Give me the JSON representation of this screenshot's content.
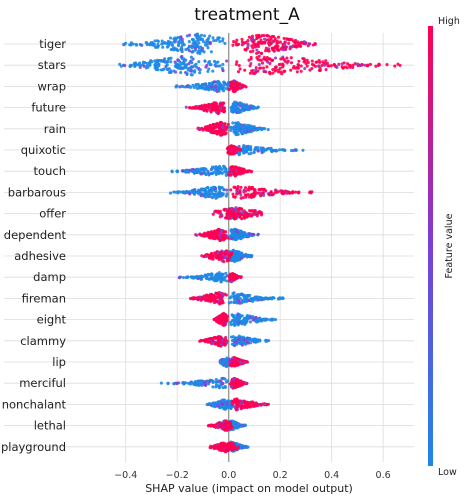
{
  "chart_data": {
    "type": "scatter",
    "subtype": "shap-beeswarm",
    "title": "treatment_A",
    "xlabel": "SHAP value (impact on model output)",
    "xlim": [
      -0.5,
      0.72
    ],
    "xticks": [
      -0.4,
      -0.2,
      0.0,
      0.2,
      0.4,
      0.6
    ],
    "xtick_labels": [
      "−0.4",
      "−0.2",
      "0.0",
      "0.2",
      "0.4",
      "0.6"
    ],
    "grid": true,
    "colorbar": {
      "label": "Feature value",
      "high": "High",
      "low": "Low"
    },
    "colors": {
      "low": "#1e88e5",
      "high": "#ff0052"
    },
    "features": [
      {
        "name": "tiger",
        "lowRange": [
          -0.43,
          0.0
        ],
        "highRange": [
          0.0,
          0.37
        ],
        "lowPeak": -0.12,
        "highPeak": 0.12,
        "width": 1.0
      },
      {
        "name": "stars",
        "lowRange": [
          -0.46,
          0.0
        ],
        "highRange": [
          0.0,
          0.69
        ],
        "lowPeak": -0.15,
        "highPeak": 0.15,
        "width": 1.0
      },
      {
        "name": "wrap",
        "lowRange": [
          -0.22,
          0.02
        ],
        "highRange": [
          0.0,
          0.07
        ],
        "lowPeak": -0.03,
        "highPeak": 0.02,
        "width": 0.45
      },
      {
        "name": "future",
        "lowRange": [
          0.0,
          0.13
        ],
        "highRange": [
          -0.17,
          0.0
        ],
        "lowPeak": 0.03,
        "highPeak": -0.04,
        "width": 0.5
      },
      {
        "name": "rain",
        "lowRange": [
          0.0,
          0.17
        ],
        "highRange": [
          -0.14,
          0.0
        ],
        "lowPeak": 0.03,
        "highPeak": -0.03,
        "width": 0.6
      },
      {
        "name": "quixotic",
        "lowRange": [
          0.0,
          0.3
        ],
        "highRange": [
          -0.01,
          0.05
        ],
        "lowPeak": 0.04,
        "highPeak": 0.01,
        "width": 0.4
      },
      {
        "name": "touch",
        "lowRange": [
          -0.25,
          0.02
        ],
        "highRange": [
          0.0,
          0.1
        ],
        "lowPeak": -0.03,
        "highPeak": 0.02,
        "width": 0.4
      },
      {
        "name": "barbarous",
        "lowRange": [
          -0.23,
          0.0
        ],
        "highRange": [
          0.0,
          0.35
        ],
        "lowPeak": -0.05,
        "highPeak": 0.05,
        "width": 0.55
      },
      {
        "name": "offer",
        "lowRange": [
          -0.01,
          0.08
        ],
        "highRange": [
          -0.08,
          0.17
        ],
        "lowPeak": 0.0,
        "highPeak": 0.03,
        "width": 0.5
      },
      {
        "name": "dependent",
        "lowRange": [
          0.0,
          0.13
        ],
        "highRange": [
          -0.14,
          0.0
        ],
        "lowPeak": 0.02,
        "highPeak": -0.03,
        "width": 0.5
      },
      {
        "name": "adhesive",
        "lowRange": [
          0.0,
          0.1
        ],
        "highRange": [
          -0.12,
          0.02
        ],
        "lowPeak": 0.02,
        "highPeak": -0.02,
        "width": 0.5
      },
      {
        "name": "damp",
        "lowRange": [
          -0.21,
          0.0
        ],
        "highRange": [
          0.0,
          0.05
        ],
        "lowPeak": -0.03,
        "highPeak": 0.01,
        "width": 0.35
      },
      {
        "name": "fireman",
        "lowRange": [
          0.0,
          0.23
        ],
        "highRange": [
          -0.16,
          0.0
        ],
        "lowPeak": 0.02,
        "highPeak": -0.04,
        "width": 0.5
      },
      {
        "name": "eight",
        "lowRange": [
          0.0,
          0.2
        ],
        "highRange": [
          -0.06,
          0.0
        ],
        "lowPeak": 0.03,
        "highPeak": -0.02,
        "width": 0.55
      },
      {
        "name": "clammy",
        "lowRange": [
          0.0,
          0.17
        ],
        "highRange": [
          -0.12,
          0.0
        ],
        "lowPeak": 0.03,
        "highPeak": -0.03,
        "width": 0.45
      },
      {
        "name": "lip",
        "lowRange": [
          -0.04,
          0.02
        ],
        "highRange": [
          0.0,
          0.08
        ],
        "lowPeak": -0.01,
        "highPeak": 0.02,
        "width": 0.35
      },
      {
        "name": "merciful",
        "lowRange": [
          -0.27,
          0.0
        ],
        "highRange": [
          0.0,
          0.08
        ],
        "lowPeak": -0.02,
        "highPeak": 0.02,
        "width": 0.4
      },
      {
        "name": "nonchalant",
        "lowRange": [
          -0.1,
          0.02
        ],
        "highRange": [
          0.0,
          0.18
        ],
        "lowPeak": -0.01,
        "highPeak": 0.03,
        "width": 0.45
      },
      {
        "name": "lethal",
        "lowRange": [
          0.0,
          0.07
        ],
        "highRange": [
          -0.08,
          0.02
        ],
        "lowPeak": 0.01,
        "highPeak": -0.01,
        "width": 0.4
      },
      {
        "name": "playground",
        "lowRange": [
          0.0,
          0.09
        ],
        "highRange": [
          -0.08,
          0.04
        ],
        "lowPeak": 0.01,
        "highPeak": -0.01,
        "width": 0.4
      }
    ]
  }
}
